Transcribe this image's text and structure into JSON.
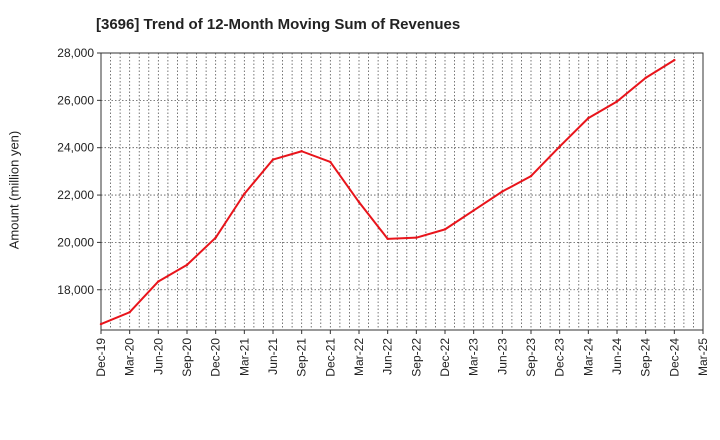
{
  "chart_data": {
    "type": "line",
    "title": "[3696]  Trend of 12-Month Moving Sum of Revenues",
    "xlabel": "",
    "ylabel": "Amount (million yen)",
    "categories": [
      "Dec-19",
      "Mar-20",
      "Jun-20",
      "Sep-20",
      "Dec-20",
      "Mar-21",
      "Jun-21",
      "Sep-21",
      "Dec-21",
      "Mar-22",
      "Jun-22",
      "Sep-22",
      "Dec-22",
      "Mar-23",
      "Jun-23",
      "Sep-23",
      "Dec-23",
      "Mar-24",
      "Jun-24",
      "Sep-24",
      "Dec-24",
      "Mar-25"
    ],
    "series": [
      {
        "color": "#e8141b",
        "values": [
          16550,
          17050,
          18350,
          19050,
          20200,
          22050,
          23500,
          23850,
          23400,
          21700,
          20150,
          20200,
          20550,
          21350,
          22150,
          22800,
          24050,
          25250,
          25950,
          26950,
          27700,
          null
        ]
      }
    ],
    "ylim": [
      16300,
      28000
    ],
    "yticks": [
      18000,
      20000,
      22000,
      24000,
      26000,
      28000
    ],
    "ytick_labels": [
      "18,000",
      "20,000",
      "22,000",
      "24,000",
      "26,000",
      "28,000"
    ],
    "grid": true,
    "legend": "none"
  }
}
